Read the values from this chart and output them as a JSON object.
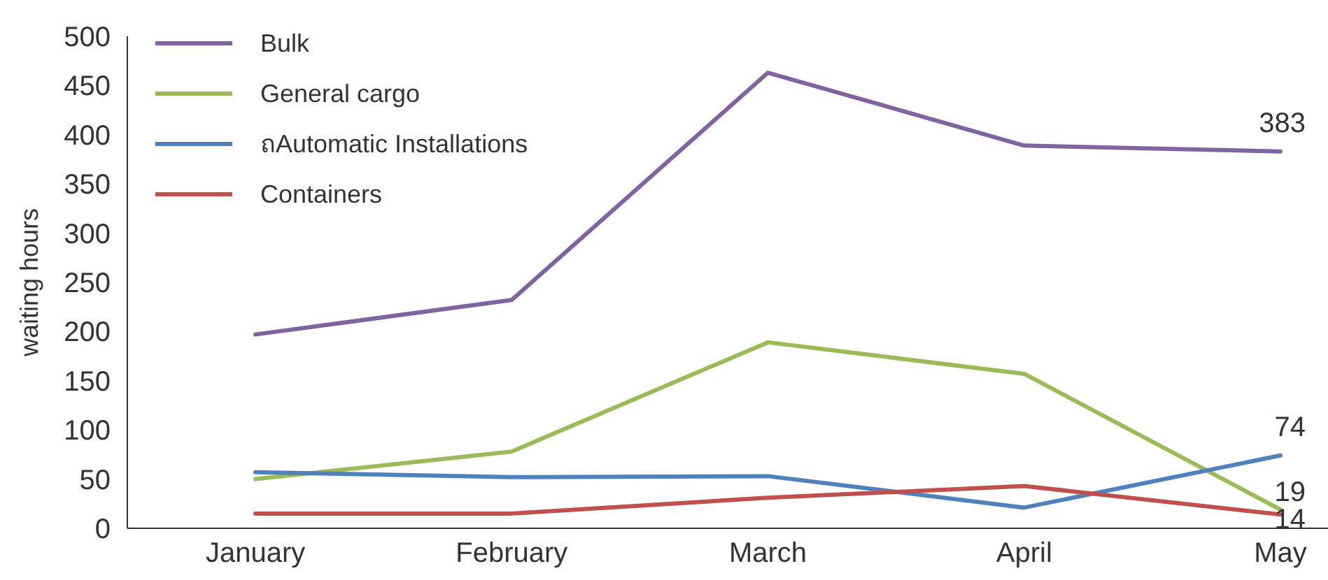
{
  "chart_data": {
    "type": "line",
    "ylabel": "waiting hours",
    "categories": [
      "January",
      "February",
      "March",
      "April",
      "May"
    ],
    "ylim": [
      0,
      500
    ],
    "yticks": [
      0,
      50,
      100,
      150,
      200,
      250,
      300,
      350,
      400,
      450,
      500
    ],
    "grid": false,
    "legend": "top left",
    "marker": "none",
    "line_style": "solid",
    "series": [
      {
        "name": "Bulk",
        "color": "#8064a2",
        "values": [
          197,
          232,
          463,
          389,
          383
        ],
        "value_labels": [
          null,
          null,
          null,
          null,
          "383"
        ]
      },
      {
        "name": "General cargo",
        "color": "#9bbb59",
        "values": [
          50,
          78,
          189,
          157,
          19
        ],
        "value_labels": [
          null,
          null,
          null,
          null,
          "19"
        ]
      },
      {
        "name": "ถAutomatic Installations",
        "color": "#4f81bd",
        "values": [
          57,
          52,
          53,
          21,
          74
        ],
        "value_labels": [
          null,
          null,
          null,
          null,
          "74"
        ]
      },
      {
        "name": "Containers",
        "color": "#c0504d",
        "values": [
          15,
          15,
          31,
          43,
          14
        ],
        "value_labels": [
          null,
          null,
          null,
          null,
          "14"
        ]
      }
    ]
  }
}
